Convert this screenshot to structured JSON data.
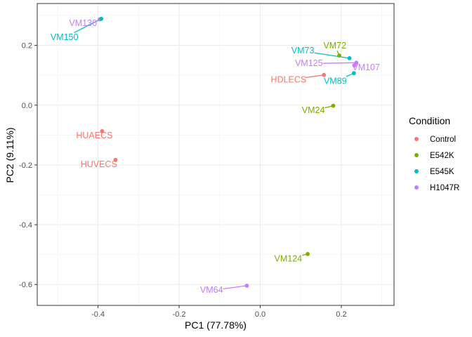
{
  "chart_data": {
    "type": "scatter",
    "xlabel": "PC1 (77.78%)",
    "ylabel": "PC2 (9.11%)",
    "xlim": [
      -0.55,
      0.33
    ],
    "ylim": [
      -0.67,
      0.34
    ],
    "x_ticks": [
      -0.4,
      -0.2,
      0.0,
      0.2
    ],
    "x_tick_labels": [
      "-0.4",
      "-0.2",
      "0.0",
      "0.2"
    ],
    "y_ticks": [
      -0.6,
      -0.4,
      -0.2,
      0.0,
      0.2
    ],
    "y_tick_labels": [
      "-0.6",
      "-0.4",
      "-0.2",
      "0.0",
      "0.2"
    ],
    "grid": true,
    "legend": {
      "title": "Condition",
      "placement": "right",
      "entries": [
        {
          "name": "Control",
          "color": "#F8766D"
        },
        {
          "name": "E542K",
          "color": "#7CAE00"
        },
        {
          "name": "E545K",
          "color": "#00BFC4"
        },
        {
          "name": "H1047R",
          "color": "#C77CFF"
        }
      ]
    },
    "points": [
      {
        "label": "VM130",
        "condition": "H1047R",
        "x": -0.396,
        "y": 0.287,
        "label_x": -0.437,
        "label_y": 0.273
      },
      {
        "label": "VM150",
        "condition": "E545K",
        "x": -0.392,
        "y": 0.289,
        "label_x": -0.483,
        "label_y": 0.226
      },
      {
        "label": "VM72",
        "condition": "E542K",
        "x": 0.195,
        "y": 0.166,
        "label_x": 0.184,
        "label_y": 0.198
      },
      {
        "label": "VM73",
        "condition": "E545K",
        "x": 0.22,
        "y": 0.157,
        "label_x": 0.105,
        "label_y": 0.181
      },
      {
        "label": "VM107",
        "condition": "H1047R",
        "x": 0.232,
        "y": 0.133,
        "label_x": 0.261,
        "label_y": 0.125
      },
      {
        "label": "VM125",
        "condition": "H1047R",
        "x": 0.237,
        "y": 0.142,
        "label_x": 0.12,
        "label_y": 0.139
      },
      {
        "label": "HDLECS",
        "condition": "Control",
        "x": 0.157,
        "y": 0.101,
        "label_x": 0.07,
        "label_y": 0.084
      },
      {
        "label": "VM89",
        "condition": "E545K",
        "x": 0.231,
        "y": 0.107,
        "label_x": 0.185,
        "label_y": 0.079
      },
      {
        "label": "VM24",
        "condition": "E542K",
        "x": 0.18,
        "y": -0.002,
        "label_x": 0.131,
        "label_y": -0.019
      },
      {
        "label": "HUAECS",
        "condition": "Control",
        "x": -0.39,
        "y": -0.087,
        "label_x": -0.409,
        "label_y": -0.103
      },
      {
        "label": "HUVECS",
        "condition": "Control",
        "x": -0.357,
        "y": -0.183,
        "label_x": -0.398,
        "label_y": -0.199
      },
      {
        "label": "VM124",
        "condition": "E542K",
        "x": 0.117,
        "y": -0.498,
        "label_x": 0.069,
        "label_y": -0.515
      },
      {
        "label": "VM64",
        "condition": "H1047R",
        "x": -0.033,
        "y": -0.604,
        "label_x": -0.12,
        "label_y": -0.62
      }
    ]
  }
}
